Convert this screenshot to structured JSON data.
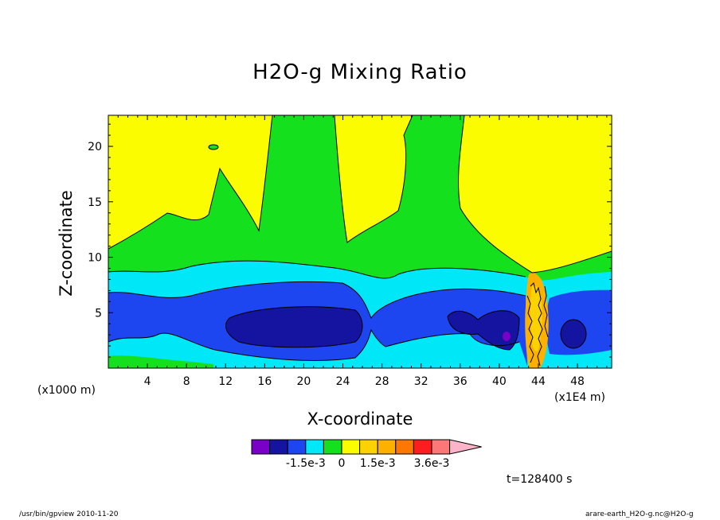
{
  "chart_data": {
    "type": "heatmap",
    "title": "H2O-g Mixing Ratio",
    "xlabel": "X-coordinate",
    "ylabel": "Z-coordinate",
    "x_unit_label": "(x1000 m)",
    "x_scale_label": "(x1E4 m)",
    "xlim": [
      0,
      51.5
    ],
    "ylim": [
      0,
      22.8
    ],
    "x_ticks": [
      "4",
      "8",
      "12",
      "16",
      "20",
      "24",
      "28",
      "32",
      "36",
      "40",
      "44",
      "48"
    ],
    "y_ticks": [
      "5",
      "10",
      "15",
      "20"
    ],
    "colorbar": {
      "colors": [
        "#7a00c8",
        "#1414a0",
        "#1e46f0",
        "#00e8f8",
        "#14e01e",
        "#fcfc00",
        "#fcd200",
        "#fcb000",
        "#fc7800",
        "#fc1e1e",
        "#fc7878",
        "#fcb4c8"
      ],
      "labels": [
        "-1.5e-3",
        "0",
        "1.5e-3",
        "3.6e-3"
      ]
    },
    "time_label": "t=128400 s"
  },
  "footer": {
    "left": "/usr/bin/gpview  2010-11-20",
    "right": "arare-earth_H2O-g.nc@H2O-g"
  }
}
